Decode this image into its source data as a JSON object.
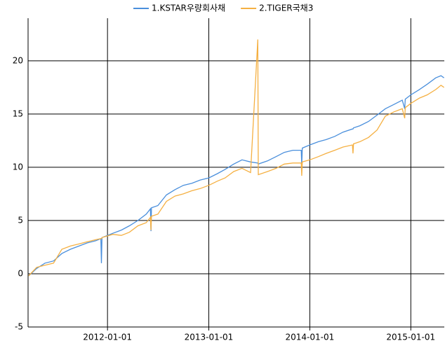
{
  "chart_data": {
    "type": "line",
    "x": [
      "2011-03-22",
      "2011-04-20",
      "2011-05-20",
      "2011-06-20",
      "2011-07-20",
      "2011-08-20",
      "2011-09-20",
      "2011-10-20",
      "2011-11-20",
      "2011-12-08",
      "2011-12-10",
      "2011-12-12",
      "2012-01-20",
      "2012-02-20",
      "2012-03-20",
      "2012-04-20",
      "2012-05-20",
      "2012-06-04",
      "2012-06-06",
      "2012-06-08",
      "2012-07-01",
      "2012-08-01",
      "2012-09-01",
      "2012-10-01",
      "2012-11-01",
      "2012-12-01",
      "2013-01-01",
      "2013-02-01",
      "2013-03-01",
      "2013-04-01",
      "2013-05-01",
      "2013-06-01",
      "2013-06-27",
      "2013-06-29",
      "2013-08-01",
      "2013-09-01",
      "2013-10-01",
      "2013-11-01",
      "2013-12-01",
      "2013-12-03",
      "2013-12-05",
      "2014-01-01",
      "2014-02-01",
      "2014-03-01",
      "2014-04-01",
      "2014-05-01",
      "2014-06-04",
      "2014-06-06",
      "2014-06-08",
      "2014-07-01",
      "2014-08-01",
      "2014-09-01",
      "2014-10-01",
      "2014-11-01",
      "2014-12-01",
      "2014-12-10",
      "2014-12-12",
      "2015-01-01",
      "2015-02-01",
      "2015-03-01",
      "2015-04-01",
      "2015-04-20",
      "2015-05-01"
    ],
    "series": [
      {
        "name": "1.KSTAR우량회사채",
        "color": "#4a8fdc",
        "values": [
          -0.2,
          0.5,
          1.0,
          1.2,
          1.9,
          2.3,
          2.6,
          2.9,
          3.1,
          3.3,
          1.0,
          3.4,
          3.8,
          4.1,
          4.5,
          5.0,
          5.6,
          6.1,
          4.0,
          6.2,
          6.4,
          7.4,
          7.9,
          8.3,
          8.5,
          8.8,
          9.0,
          9.4,
          9.8,
          10.3,
          10.7,
          10.5,
          10.4,
          10.3,
          10.6,
          11.0,
          11.4,
          11.6,
          11.6,
          10.2,
          11.8,
          12.1,
          12.4,
          12.6,
          12.9,
          13.3,
          13.6,
          13.6,
          13.7,
          13.9,
          14.3,
          14.9,
          15.5,
          15.9,
          16.3,
          15.5,
          16.4,
          16.8,
          17.3,
          17.8,
          18.4,
          18.6,
          18.4
        ]
      },
      {
        "name": "2.TIGER국채3",
        "color": "#f5b042",
        "values": [
          -0.2,
          0.6,
          0.8,
          1.0,
          2.3,
          2.6,
          2.8,
          3.0,
          3.2,
          3.3,
          3.3,
          3.4,
          3.7,
          3.6,
          3.9,
          4.5,
          4.8,
          5.3,
          4.1,
          5.4,
          5.6,
          6.8,
          7.3,
          7.5,
          7.8,
          8.0,
          8.3,
          8.7,
          9.0,
          9.6,
          9.9,
          9.5,
          22.0,
          9.3,
          9.6,
          9.9,
          10.3,
          10.4,
          10.4,
          9.2,
          10.5,
          10.7,
          11.0,
          11.3,
          11.6,
          11.9,
          12.1,
          11.3,
          12.2,
          12.4,
          12.8,
          13.5,
          14.8,
          15.2,
          15.5,
          14.6,
          15.6,
          16.0,
          16.5,
          16.8,
          17.3,
          17.7,
          17.5
        ]
      }
    ],
    "xlim": [
      "2011-03-20",
      "2015-05-02"
    ],
    "xticks": [
      "2012-01-01",
      "2013-01-01",
      "2014-01-01",
      "2015-01-01"
    ],
    "ylim": [
      -5,
      24
    ],
    "yticks": [
      -5,
      0,
      5,
      10,
      15,
      20
    ],
    "grid": true,
    "legend": "top"
  }
}
